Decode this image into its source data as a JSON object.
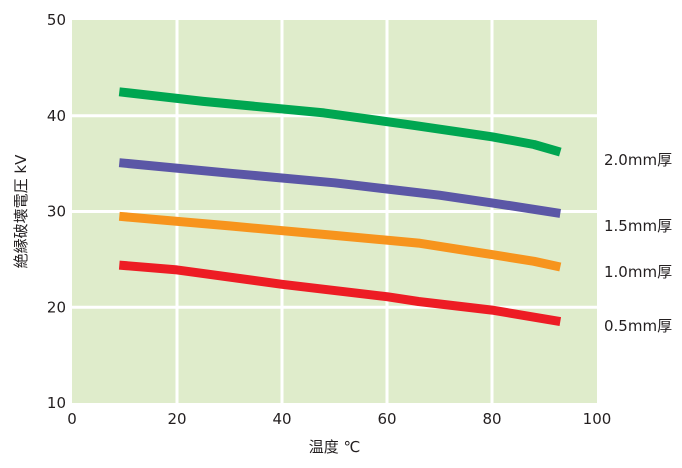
{
  "chart_data": {
    "type": "line",
    "xlabel": "温度 ℃",
    "ylabel": "絶縁破壊電圧 kV",
    "xlim": [
      0,
      100
    ],
    "ylim": [
      10,
      50
    ],
    "xticks": [
      0,
      20,
      40,
      60,
      80,
      100
    ],
    "yticks": [
      10,
      20,
      30,
      40,
      50
    ],
    "grid": true,
    "legend": "right",
    "plot_background": "#dfeccb",
    "grid_color": "#ffffff",
    "series": [
      {
        "name": "2.0mm厚",
        "color": "#00a651",
        "x": [
          9,
          25,
          48,
          65,
          80,
          88,
          93
        ],
        "y": [
          42.5,
          41.5,
          40.3,
          39.0,
          37.8,
          37.0,
          36.2
        ]
      },
      {
        "name": "1.5mm厚",
        "color": "#5b57a6",
        "x": [
          9,
          30,
          50,
          70,
          80,
          93
        ],
        "y": [
          35.1,
          34.0,
          33.0,
          31.7,
          30.9,
          29.8
        ]
      },
      {
        "name": "1.0mm厚",
        "color": "#f7941d",
        "x": [
          9,
          30,
          50,
          66,
          80,
          88,
          93
        ],
        "y": [
          29.5,
          28.5,
          27.5,
          26.7,
          25.5,
          24.8,
          24.2
        ]
      },
      {
        "name": "0.5mm厚",
        "color": "#ed1c24",
        "x": [
          9,
          20,
          40,
          60,
          66,
          80,
          93
        ],
        "y": [
          24.4,
          23.9,
          22.4,
          21.1,
          20.6,
          19.7,
          18.5
        ]
      }
    ]
  }
}
